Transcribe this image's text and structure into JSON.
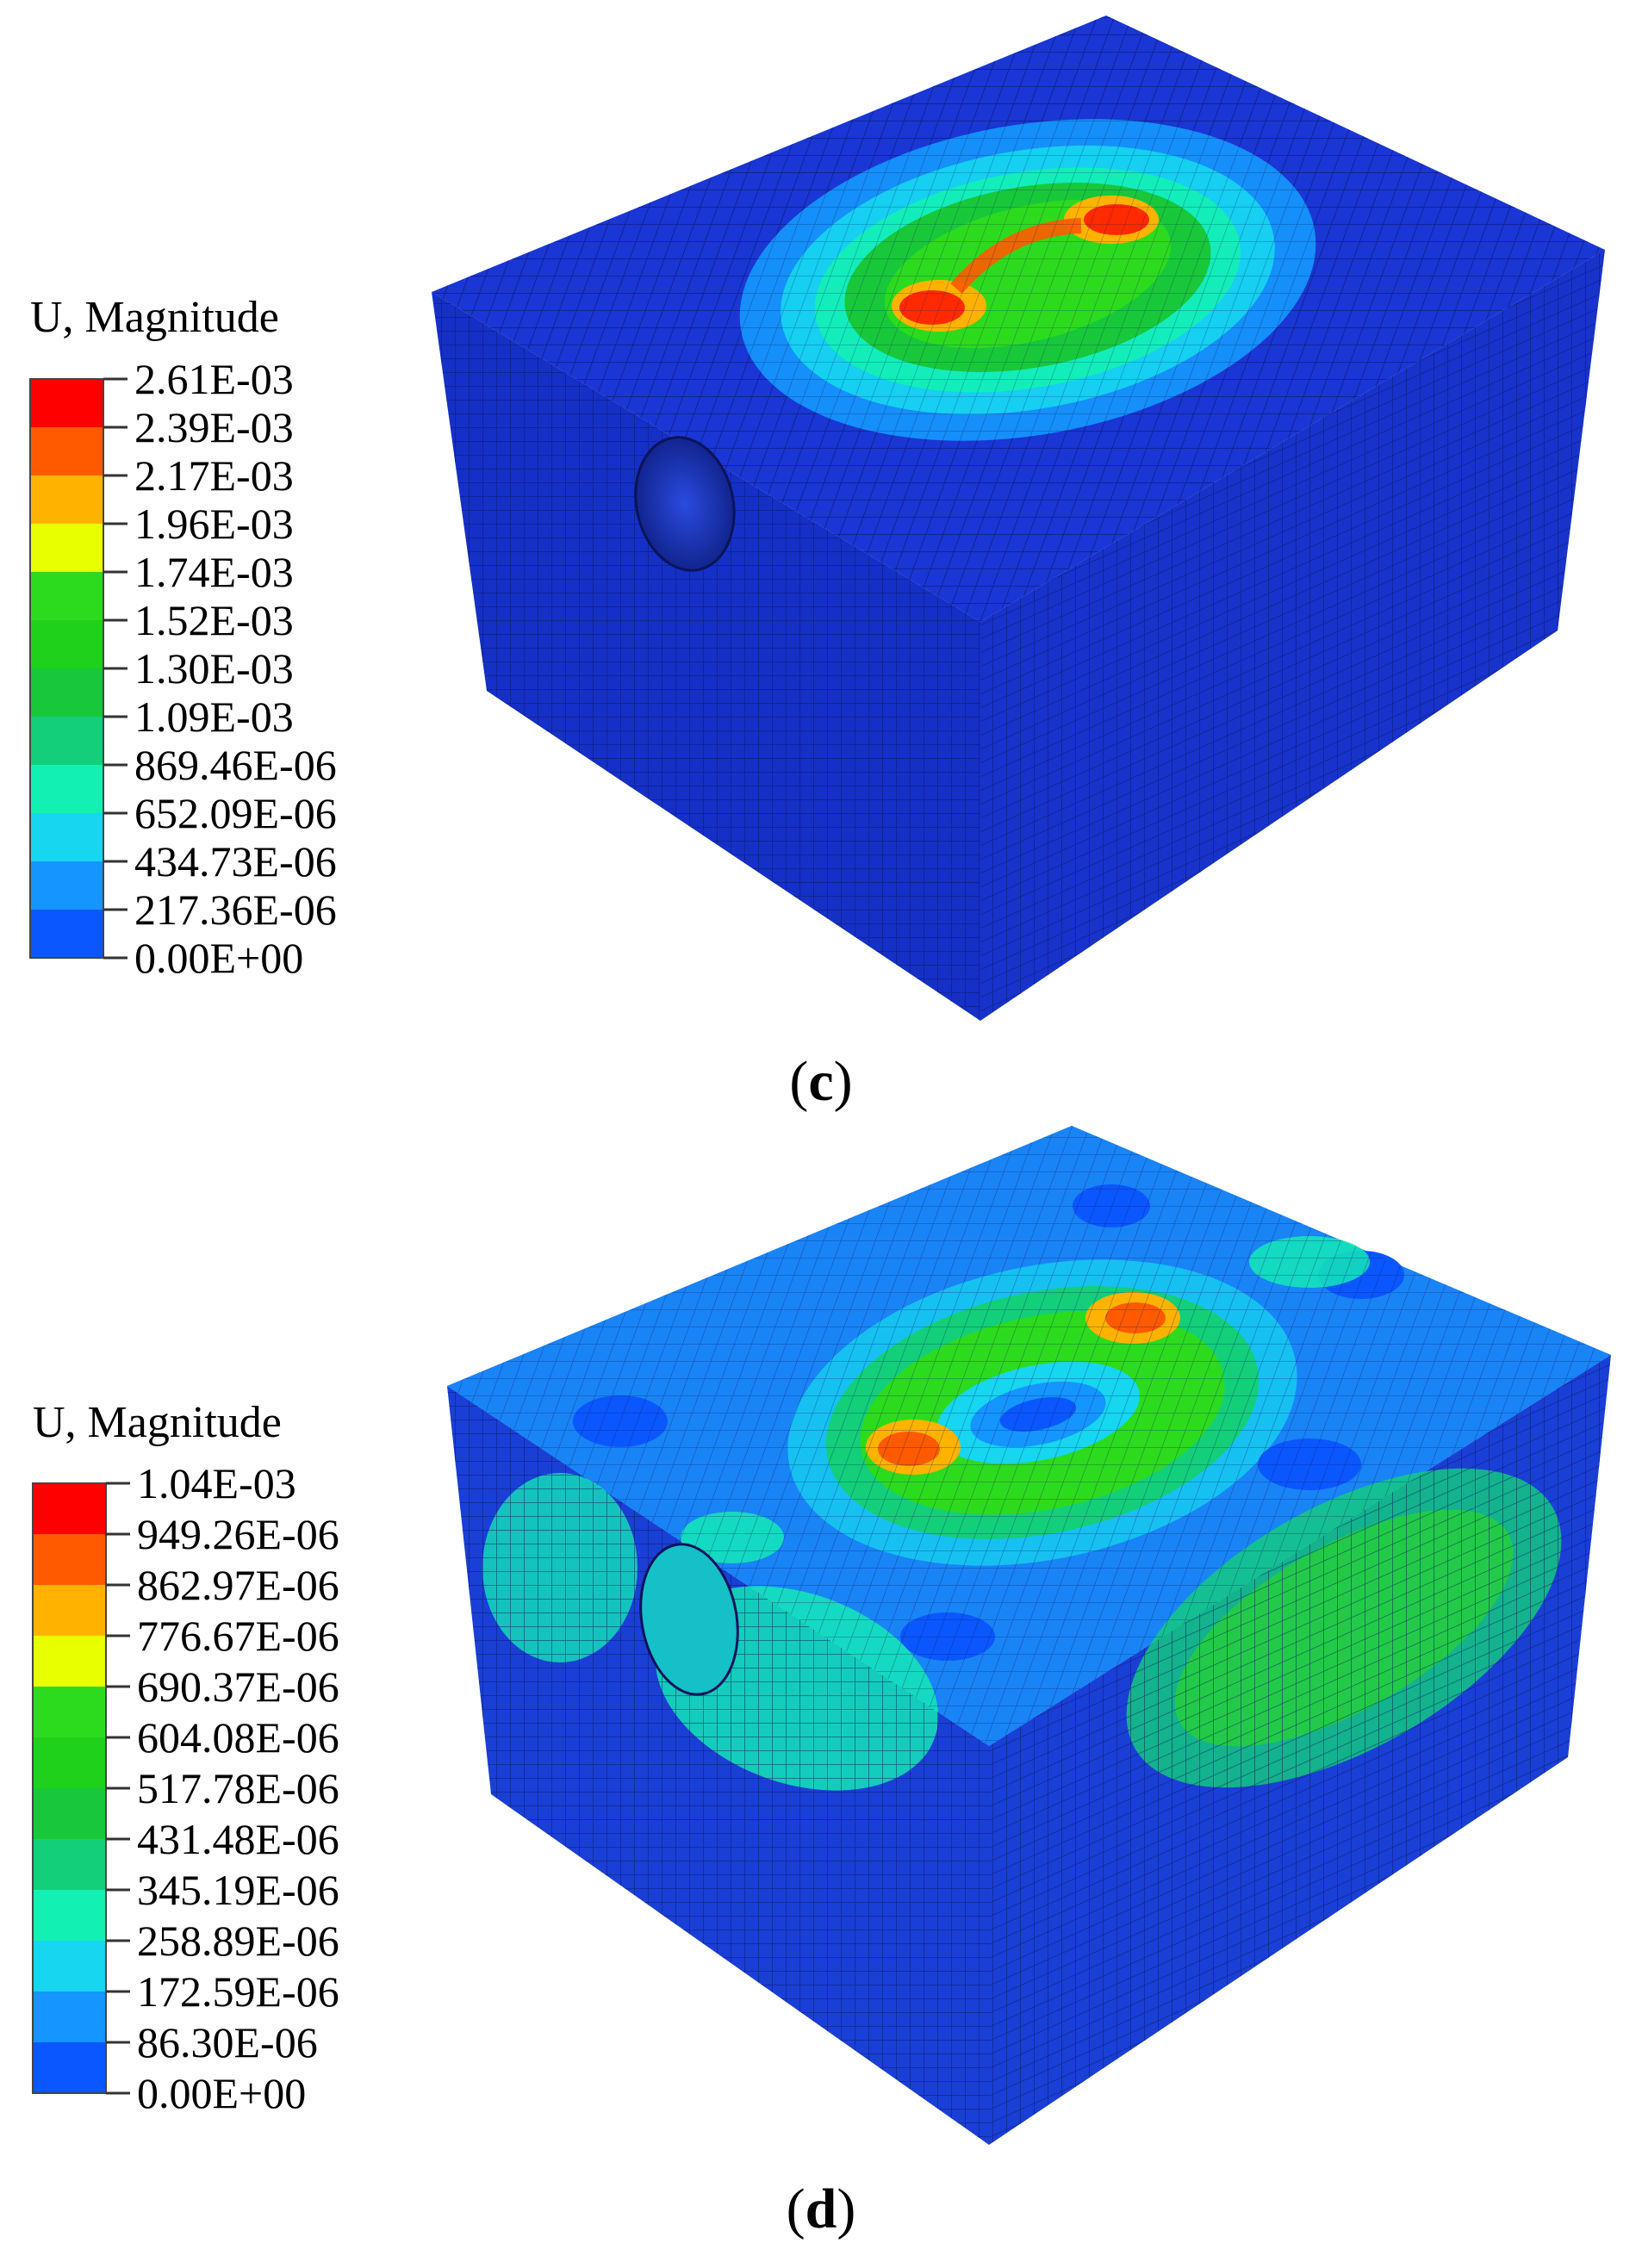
{
  "panels": [
    {
      "id": "c",
      "caption_letter": "c",
      "legend": {
        "title": "U, Magnitude",
        "labels": [
          "2.61E-03",
          "2.39E-03",
          "2.17E-03",
          "1.96E-03",
          "1.74E-03",
          "1.52E-03",
          "1.30E-03",
          "1.09E-03",
          "869.46E-06",
          "652.09E-06",
          "434.73E-06",
          "217.36E-06",
          "0.00E+00"
        ]
      }
    },
    {
      "id": "d",
      "caption_letter": "d",
      "legend": {
        "title": "U, Magnitude",
        "labels": [
          "1.04E-03",
          "949.26E-06",
          "862.97E-06",
          "776.67E-06",
          "690.37E-06",
          "604.08E-06",
          "517.78E-06",
          "431.48E-06",
          "345.19E-06",
          "258.89E-06",
          "172.59E-06",
          "86.30E-06",
          "0.00E+00"
        ]
      }
    }
  ],
  "colormap": [
    "#ff0000",
    "#ff5a00",
    "#ffb300",
    "#e8ff00",
    "#2ddb1e",
    "#1fd11a",
    "#18c83a",
    "#13cf7a",
    "#13f0b4",
    "#16d6f0",
    "#1595ff",
    "#0b57ff",
    "#0000ff"
  ],
  "colors": {
    "mesh_base": "#1833cf",
    "mesh_line": "#0b145a"
  }
}
